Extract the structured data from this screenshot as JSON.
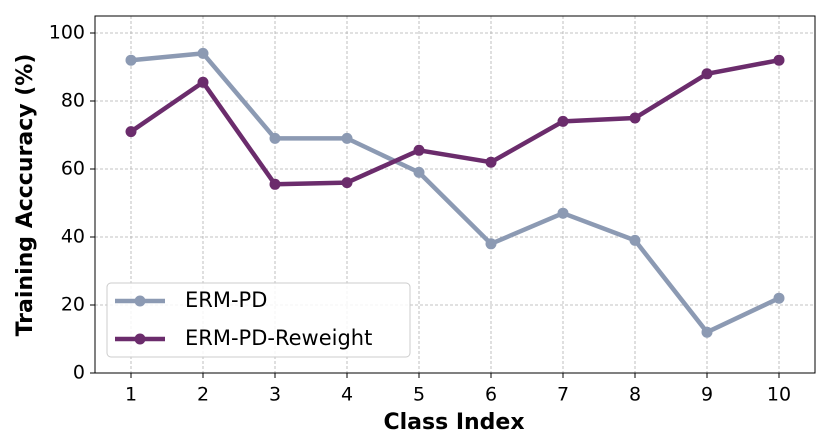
{
  "chart_data": {
    "type": "line",
    "xlabel": "Class Index",
    "ylabel": "Training Acccuracy (%)",
    "x": [
      1,
      2,
      3,
      4,
      5,
      6,
      7,
      8,
      9,
      10
    ],
    "series": [
      {
        "name": "ERM-PD",
        "color": "#8c9ab3",
        "values": [
          92,
          94,
          69,
          69,
          59,
          38,
          47,
          39,
          12,
          22
        ]
      },
      {
        "name": "ERM-PD-Reweight",
        "color": "#6b2c6c",
        "values": [
          71,
          85.5,
          55.5,
          56,
          65.5,
          62,
          74,
          75,
          88,
          92
        ]
      }
    ],
    "xlim": [
      0.5,
      10.5
    ],
    "xticks": [
      1,
      2,
      3,
      4,
      5,
      6,
      7,
      8,
      9,
      10
    ],
    "ylim": [
      0,
      105
    ],
    "yticks": [
      0,
      20,
      40,
      60,
      80,
      100
    ],
    "grid": true,
    "legend": "lower left"
  }
}
